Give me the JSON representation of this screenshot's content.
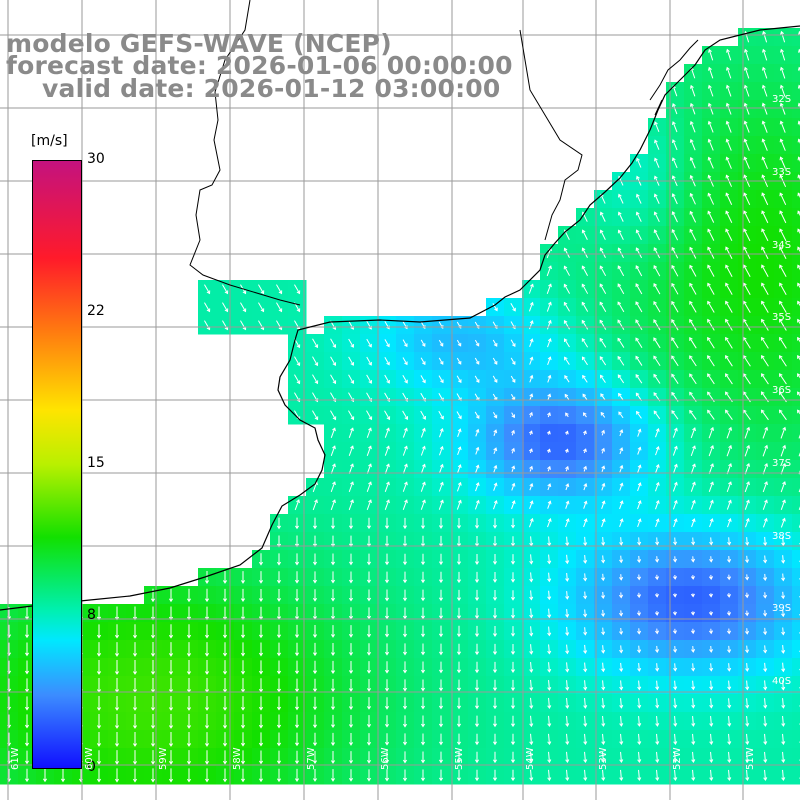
{
  "title": {
    "line1": "modelo GEFS-WAVE (NCEP)",
    "line2": "forecast date: 2026-01-06 00:00:00",
    "line3": "valid date: 2026-01-12 03:00:00"
  },
  "legend": {
    "unit": "[m/s]",
    "ticks": [
      "30",
      "22",
      "15",
      "8",
      "0"
    ],
    "colors": [
      "#c4127e",
      "#ff1a2a",
      "#ff7a10",
      "#ffe400",
      "#12e000",
      "#00f0ff",
      "#1010ff"
    ]
  },
  "grid": {
    "lat_labels": [
      "32S",
      "33S",
      "34S",
      "35S",
      "36S",
      "37S",
      "38S",
      "39S",
      "40S"
    ],
    "lon_labels": [
      "61W",
      "60W",
      "59W",
      "58W",
      "57W",
      "56W",
      "55W",
      "54W",
      "53W",
      "52W",
      "51W"
    ]
  },
  "map": {
    "region": "Rio de la Plata / South Atlantic",
    "field": "wind speed with direction arrows",
    "land_color": "#ffffff",
    "coast_color": "#000000",
    "grid_color": "#9a9a9a",
    "calm_color": "#1010ff",
    "strong_color": "#12e000"
  }
}
